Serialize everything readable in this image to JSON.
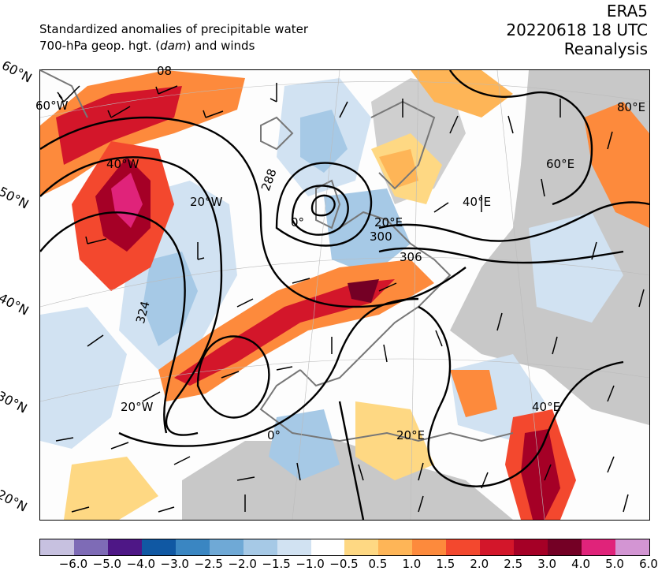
{
  "header": {
    "line1": "Standardized anomalies of precipitable water",
    "line2_prefix": "700-hPa geop. hgt. (",
    "line2_unit": "dam",
    "line2_suffix": ") and winds",
    "dataset": "ERA5",
    "datetime": "20220618 18 UTC",
    "kind": "Reanalysis"
  },
  "lat_labels": [
    "60°N",
    "50°N",
    "40°N",
    "30°N",
    "20°N"
  ],
  "map_labels": {
    "lon_60w": "60°W",
    "lon_40w": "40°W",
    "lon_20w_n": "20°W",
    "lon_0_n": "0°",
    "lon_20e_n": "20°E",
    "lon_40e_n": "40°E",
    "lon_60e": "60°E",
    "lon_80e": "80°E",
    "lon_20w_s": "20°W",
    "lon_0_s": "0°",
    "lon_20e_s": "20°E",
    "lon_40e_s": "40°E",
    "contour_288": "288",
    "contour_300": "300",
    "contour_306": "306",
    "contour_324": "324",
    "contour_08": "08"
  },
  "colorbar": {
    "colors": [
      "#c7c1e0",
      "#7e6bb6",
      "#4e1786",
      "#1058a3",
      "#3a86c2",
      "#6fa9d6",
      "#a6c9e6",
      "#d1e2f2",
      "#ffffff",
      "#fed883",
      "#feb557",
      "#fd8a3c",
      "#f3482e",
      "#d3162a",
      "#a50026",
      "#740025",
      "#e0237a",
      "#d395d3"
    ],
    "ticks": [
      "−6.0",
      "−5.0",
      "−4.0",
      "−3.0",
      "−2.5",
      "−2.0",
      "−1.5",
      "−1.0",
      "−0.5",
      "0.5",
      "1.0",
      "1.5",
      "2.0",
      "2.5",
      "3.0",
      "4.0",
      "5.0",
      "6.0"
    ]
  }
}
